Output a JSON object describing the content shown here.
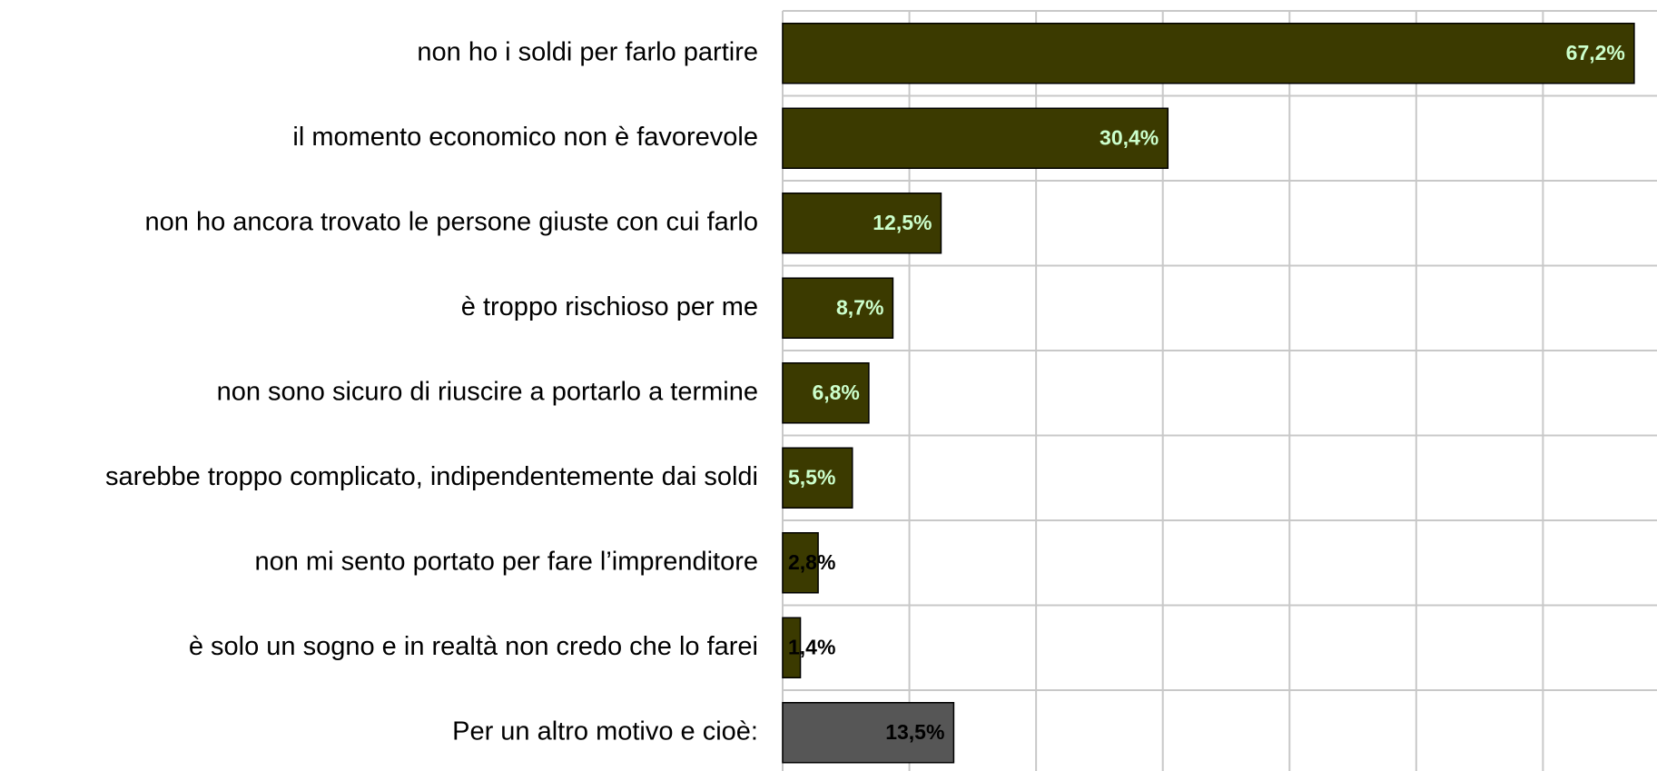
{
  "chart_data": {
    "type": "barh",
    "categories": [
      "non ho i soldi per farlo partire",
      "il momento economico non è favorevole",
      "non ho ancora trovato le persone giuste con cui farlo",
      "è troppo rischioso per me",
      "non sono sicuro di riuscire a portarlo a termine",
      "sarebbe troppo complicato, indipendentemente dai soldi",
      "non mi sento portato per fare l’imprenditore",
      "è solo un sogno e in realtà non credo che lo farei",
      "Per un altro motivo e cioè:"
    ],
    "values": [
      67.2,
      30.4,
      12.5,
      8.7,
      6.8,
      5.5,
      2.8,
      1.4,
      13.5
    ],
    "value_labels": [
      "67,2%",
      "30,4%",
      "12,5%",
      "8,7%",
      "6,8%",
      "5,5%",
      "2,8%",
      "1,4%",
      "13,5%"
    ],
    "colors": [
      "#3b3a00",
      "#3b3a00",
      "#3b3a00",
      "#3b3a00",
      "#3b3a00",
      "#3b3a00",
      "#3b3a00",
      "#3b3a00",
      "#565656"
    ],
    "label_colors": [
      "#ccffcc",
      "#ccffcc",
      "#ccffcc",
      "#ccffcc",
      "#ccffcc",
      "#ccffcc",
      "#000000",
      "#000000",
      "#000000"
    ],
    "xlim": [
      0,
      69
    ],
    "xticks": [
      0,
      10,
      20,
      30,
      40,
      50,
      60
    ],
    "grid": true
  }
}
